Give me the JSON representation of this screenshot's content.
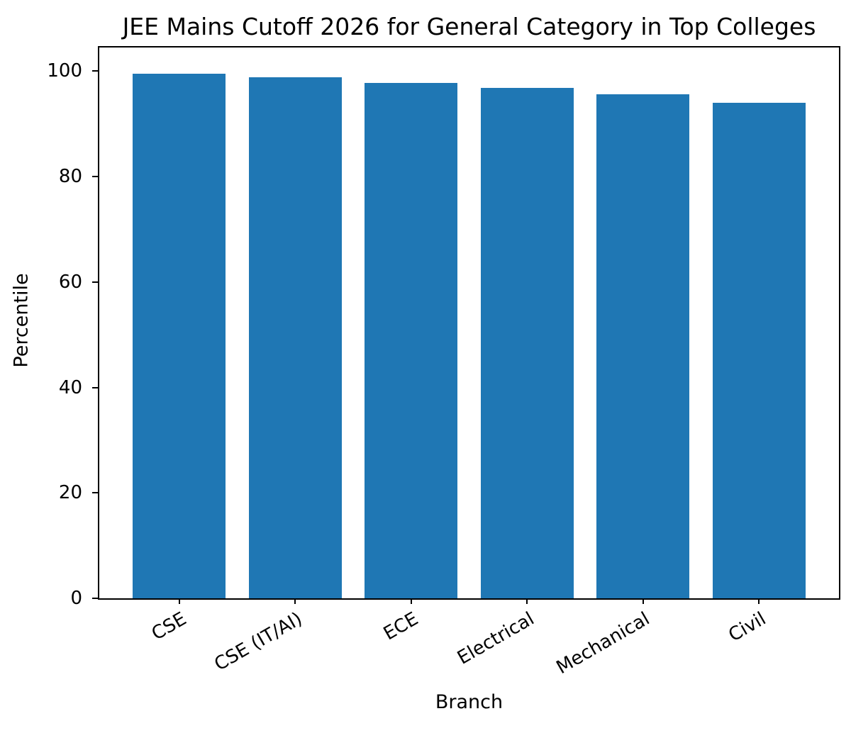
{
  "chart_data": {
    "type": "bar",
    "title": "JEE Mains Cutoff 2026 for General Category in Top Colleges",
    "xlabel": "Branch",
    "ylabel": "Percentile",
    "categories": [
      "CSE",
      "CSE (IT/AI)",
      "ECE",
      "Electrical",
      "Mechanical",
      "Civil"
    ],
    "values": [
      99.5,
      98.8,
      97.8,
      96.9,
      95.6,
      94.0
    ],
    "bar_color": "#1f77b4",
    "ylim": [
      0,
      104.5
    ],
    "yticks": [
      0,
      20,
      40,
      60,
      80,
      100
    ],
    "grid": false,
    "legend": "none",
    "x_tick_label_rotation_deg": 30
  }
}
